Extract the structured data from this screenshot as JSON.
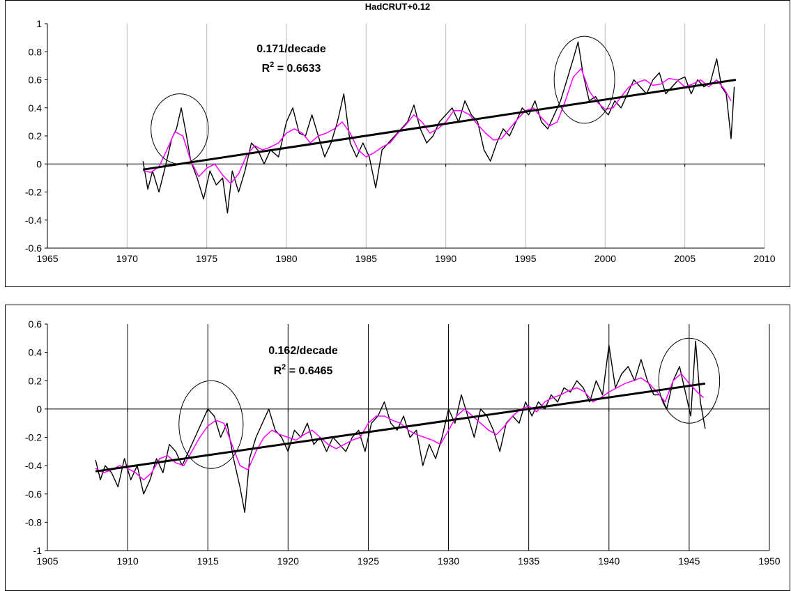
{
  "chart_data": [
    {
      "type": "line",
      "title": "HadCRUT+0.12",
      "xlim": [
        1965,
        2010
      ],
      "ylim": [
        -0.6,
        1
      ],
      "xticks": [
        1965,
        1970,
        1975,
        1980,
        1985,
        1990,
        1995,
        2000,
        2005,
        2010
      ],
      "yticks": [
        -0.6,
        -0.4,
        -0.2,
        0,
        0.2,
        0.4,
        0.6,
        0.8,
        1
      ],
      "ytick_labels": [
        "-0.6",
        "-0.4",
        "-0.2",
        "0",
        "0.2",
        "0.4",
        "0.6",
        "0.8",
        "1"
      ],
      "grid": "vertical, light gray",
      "annotation": {
        "slope": "0.171/decade",
        "r2": "0.6633"
      },
      "series": [
        {
          "role": "monthly",
          "color": "#000000",
          "x": [
            1971.0,
            1971.3,
            1971.6,
            1972.0,
            1972.4,
            1972.8,
            1973.1,
            1973.4,
            1973.7,
            1974.0,
            1974.4,
            1974.8,
            1975.2,
            1975.6,
            1976.0,
            1976.3,
            1976.6,
            1977.0,
            1977.4,
            1977.8,
            1978.2,
            1978.6,
            1979.0,
            1979.5,
            1980.0,
            1980.4,
            1980.8,
            1981.2,
            1981.6,
            1982.0,
            1982.4,
            1982.8,
            1983.2,
            1983.6,
            1984.0,
            1984.4,
            1984.8,
            1985.2,
            1985.6,
            1986.0,
            1986.4,
            1986.8,
            1987.2,
            1987.6,
            1988.0,
            1988.4,
            1988.8,
            1989.2,
            1989.6,
            1990.0,
            1990.4,
            1990.8,
            1991.2,
            1991.6,
            1992.0,
            1992.4,
            1992.8,
            1993.2,
            1993.6,
            1994.0,
            1994.4,
            1994.8,
            1995.2,
            1995.6,
            1996.0,
            1996.4,
            1996.8,
            1997.2,
            1997.6,
            1998.0,
            1998.3,
            1998.6,
            1999.0,
            1999.4,
            1999.8,
            2000.2,
            2000.6,
            2001.0,
            2001.4,
            2001.8,
            2002.2,
            2002.6,
            2003.0,
            2003.4,
            2003.8,
            2004.2,
            2004.6,
            2005.0,
            2005.4,
            2005.8,
            2006.2,
            2006.6,
            2007.0,
            2007.3,
            2007.6,
            2007.9,
            2008.1
          ],
          "y": [
            0.02,
            -0.18,
            -0.05,
            -0.2,
            -0.02,
            0.18,
            0.25,
            0.4,
            0.22,
            0.02,
            -0.1,
            -0.25,
            -0.05,
            -0.15,
            -0.1,
            -0.35,
            -0.05,
            -0.2,
            -0.05,
            0.15,
            0.1,
            0.0,
            0.1,
            0.05,
            0.3,
            0.4,
            0.22,
            0.2,
            0.35,
            0.2,
            0.05,
            0.15,
            0.3,
            0.5,
            0.15,
            0.05,
            0.15,
            0.05,
            -0.17,
            0.1,
            0.15,
            0.2,
            0.25,
            0.3,
            0.42,
            0.25,
            0.15,
            0.2,
            0.3,
            0.35,
            0.4,
            0.3,
            0.45,
            0.35,
            0.3,
            0.1,
            0.02,
            0.15,
            0.25,
            0.2,
            0.3,
            0.4,
            0.35,
            0.45,
            0.3,
            0.25,
            0.35,
            0.45,
            0.6,
            0.75,
            0.87,
            0.65,
            0.45,
            0.48,
            0.4,
            0.35,
            0.45,
            0.4,
            0.5,
            0.6,
            0.55,
            0.5,
            0.6,
            0.65,
            0.5,
            0.55,
            0.6,
            0.62,
            0.5,
            0.6,
            0.55,
            0.58,
            0.75,
            0.55,
            0.5,
            0.18,
            0.55
          ]
        },
        {
          "role": "smoothed",
          "color": "#ff00ff",
          "x": [
            1971.0,
            1971.5,
            1972.0,
            1972.5,
            1973.0,
            1973.5,
            1974.0,
            1974.5,
            1975.0,
            1975.5,
            1976.0,
            1976.5,
            1977.0,
            1977.5,
            1978.0,
            1978.5,
            1979.0,
            1979.5,
            1980.0,
            1980.5,
            1981.0,
            1981.5,
            1982.0,
            1982.5,
            1983.0,
            1983.5,
            1984.0,
            1984.5,
            1985.0,
            1985.5,
            1986.0,
            1986.5,
            1987.0,
            1987.5,
            1988.0,
            1988.5,
            1989.0,
            1989.5,
            1990.0,
            1990.5,
            1991.0,
            1991.5,
            1992.0,
            1992.5,
            1993.0,
            1993.5,
            1994.0,
            1994.5,
            1995.0,
            1995.5,
            1996.0,
            1996.5,
            1997.0,
            1997.5,
            1998.0,
            1998.5,
            1999.0,
            1999.5,
            2000.0,
            2000.5,
            2001.0,
            2001.5,
            2002.0,
            2002.5,
            2003.0,
            2003.5,
            2004.0,
            2004.5,
            2005.0,
            2005.5,
            2006.0,
            2006.5,
            2007.0,
            2007.5,
            2007.9
          ],
          "y": [
            -0.05,
            -0.06,
            -0.02,
            0.1,
            0.23,
            0.2,
            0.02,
            -0.09,
            -0.03,
            0.0,
            -0.08,
            -0.14,
            -0.07,
            0.06,
            0.13,
            0.1,
            0.12,
            0.15,
            0.22,
            0.25,
            0.22,
            0.15,
            0.2,
            0.22,
            0.25,
            0.3,
            0.22,
            0.1,
            0.05,
            0.08,
            0.12,
            0.15,
            0.22,
            0.28,
            0.35,
            0.3,
            0.22,
            0.25,
            0.3,
            0.38,
            0.38,
            0.35,
            0.28,
            0.22,
            0.17,
            0.18,
            0.25,
            0.32,
            0.38,
            0.4,
            0.33,
            0.27,
            0.3,
            0.45,
            0.62,
            0.68,
            0.52,
            0.44,
            0.39,
            0.4,
            0.48,
            0.55,
            0.58,
            0.6,
            0.56,
            0.57,
            0.61,
            0.6,
            0.55,
            0.57,
            0.6,
            0.55,
            0.6,
            0.53,
            0.45
          ]
        },
        {
          "role": "trend",
          "color": "#000000",
          "x": [
            1971,
            2008.2
          ],
          "y": [
            -0.04,
            0.6
          ]
        }
      ],
      "annotation_ellipses": [
        {
          "cx": 1973.3,
          "cy": 0.25,
          "rx": 1.8,
          "ry": 0.25
        },
        {
          "cx": 1998.7,
          "cy": 0.6,
          "rx": 1.9,
          "ry": 0.31
        }
      ]
    },
    {
      "type": "line",
      "title": "",
      "xlim": [
        1905,
        1950
      ],
      "ylim": [
        -1,
        0.6
      ],
      "xticks": [
        1905,
        1910,
        1915,
        1920,
        1925,
        1930,
        1935,
        1940,
        1945,
        1950
      ],
      "yticks": [
        -1,
        -0.8,
        -0.6,
        -0.4,
        -0.2,
        0,
        0.2,
        0.4,
        0.6
      ],
      "ytick_labels": [
        "-1",
        "-0.8",
        "-0.6",
        "-0.4",
        "-0.2",
        "0",
        "0.2",
        "0.4",
        "0.6"
      ],
      "grid": "vertical, dark",
      "annotation": {
        "slope": "0.162/decade",
        "r2": "0.6465"
      },
      "series": [
        {
          "role": "monthly",
          "color": "#000000",
          "x": [
            1908.0,
            1908.3,
            1908.6,
            1909.0,
            1909.4,
            1909.8,
            1910.2,
            1910.6,
            1911.0,
            1911.4,
            1911.8,
            1912.2,
            1912.6,
            1913.0,
            1913.4,
            1913.8,
            1914.2,
            1914.6,
            1915.0,
            1915.4,
            1915.8,
            1916.2,
            1916.6,
            1917.0,
            1917.3,
            1917.6,
            1918.0,
            1918.4,
            1918.8,
            1919.2,
            1919.6,
            1920.0,
            1920.4,
            1920.8,
            1921.2,
            1921.6,
            1922.0,
            1922.4,
            1922.8,
            1923.2,
            1923.6,
            1924.0,
            1924.4,
            1924.8,
            1925.2,
            1925.6,
            1926.0,
            1926.4,
            1926.8,
            1927.2,
            1927.6,
            1928.0,
            1928.4,
            1928.8,
            1929.2,
            1929.6,
            1930.0,
            1930.4,
            1930.8,
            1931.2,
            1931.6,
            1932.0,
            1932.4,
            1932.8,
            1933.2,
            1933.6,
            1934.0,
            1934.4,
            1934.8,
            1935.2,
            1935.6,
            1936.0,
            1936.4,
            1936.8,
            1937.2,
            1937.6,
            1938.0,
            1938.4,
            1938.8,
            1939.2,
            1939.6,
            1940.0,
            1940.4,
            1940.8,
            1941.2,
            1941.6,
            1942.0,
            1942.4,
            1942.8,
            1943.2,
            1943.6,
            1944.0,
            1944.4,
            1944.8,
            1945.1,
            1945.4,
            1945.7,
            1946.0
          ],
          "y": [
            -0.36,
            -0.5,
            -0.4,
            -0.45,
            -0.55,
            -0.35,
            -0.5,
            -0.4,
            -0.6,
            -0.5,
            -0.35,
            -0.45,
            -0.25,
            -0.3,
            -0.4,
            -0.3,
            -0.2,
            -0.1,
            0.0,
            -0.05,
            -0.2,
            -0.1,
            -0.35,
            -0.55,
            -0.73,
            -0.35,
            -0.2,
            -0.1,
            0.0,
            -0.15,
            -0.2,
            -0.3,
            -0.15,
            -0.2,
            -0.1,
            -0.25,
            -0.2,
            -0.3,
            -0.2,
            -0.25,
            -0.3,
            -0.2,
            -0.15,
            -0.3,
            -0.1,
            -0.05,
            0.05,
            -0.1,
            -0.15,
            -0.05,
            -0.2,
            -0.15,
            -0.4,
            -0.25,
            -0.35,
            -0.2,
            0.0,
            -0.1,
            0.1,
            -0.05,
            -0.2,
            0.0,
            -0.05,
            -0.15,
            -0.3,
            -0.1,
            -0.05,
            -0.1,
            0.05,
            -0.05,
            0.05,
            0.0,
            0.1,
            0.05,
            0.15,
            0.12,
            0.2,
            0.15,
            0.05,
            0.2,
            0.1,
            0.45,
            0.15,
            0.25,
            0.3,
            0.2,
            0.35,
            0.2,
            0.1,
            0.1,
            0.0,
            0.2,
            0.3,
            0.1,
            -0.05,
            0.48,
            0.05,
            -0.14
          ]
        },
        {
          "role": "smoothed",
          "color": "#ff00ff",
          "x": [
            1908.0,
            1908.5,
            1909.0,
            1909.5,
            1910.0,
            1910.5,
            1911.0,
            1911.5,
            1912.0,
            1912.5,
            1913.0,
            1913.5,
            1914.0,
            1914.5,
            1915.0,
            1915.5,
            1916.0,
            1916.5,
            1917.0,
            1917.5,
            1918.0,
            1918.5,
            1919.0,
            1919.5,
            1920.0,
            1920.5,
            1921.0,
            1921.5,
            1922.0,
            1922.5,
            1923.0,
            1923.5,
            1924.0,
            1924.5,
            1925.0,
            1925.5,
            1926.0,
            1926.5,
            1927.0,
            1927.5,
            1928.0,
            1928.5,
            1929.0,
            1929.5,
            1930.0,
            1930.5,
            1931.0,
            1931.5,
            1932.0,
            1932.5,
            1933.0,
            1933.5,
            1934.0,
            1934.5,
            1935.0,
            1935.5,
            1936.0,
            1936.5,
            1937.0,
            1937.5,
            1938.0,
            1938.5,
            1939.0,
            1939.5,
            1940.0,
            1940.5,
            1941.0,
            1941.5,
            1942.0,
            1942.5,
            1943.0,
            1943.5,
            1944.0,
            1944.5,
            1945.0,
            1945.5,
            1945.9
          ],
          "y": [
            -0.42,
            -0.45,
            -0.43,
            -0.4,
            -0.42,
            -0.45,
            -0.5,
            -0.45,
            -0.35,
            -0.33,
            -0.38,
            -0.4,
            -0.3,
            -0.2,
            -0.12,
            -0.08,
            -0.1,
            -0.25,
            -0.4,
            -0.43,
            -0.3,
            -0.2,
            -0.15,
            -0.18,
            -0.2,
            -0.22,
            -0.18,
            -0.15,
            -0.2,
            -0.25,
            -0.28,
            -0.25,
            -0.22,
            -0.2,
            -0.1,
            -0.05,
            -0.05,
            -0.08,
            -0.1,
            -0.15,
            -0.18,
            -0.2,
            -0.22,
            -0.25,
            -0.15,
            -0.05,
            0.0,
            -0.05,
            -0.1,
            -0.15,
            -0.18,
            -0.12,
            -0.05,
            0.0,
            0.02,
            -0.02,
            0.05,
            0.08,
            0.1,
            0.13,
            0.15,
            0.12,
            0.05,
            0.08,
            0.12,
            0.15,
            0.18,
            0.2,
            0.22,
            0.18,
            0.12,
            0.05,
            0.2,
            0.25,
            0.18,
            0.12,
            0.08
          ]
        },
        {
          "role": "trend",
          "color": "#000000",
          "x": [
            1908,
            1946
          ],
          "y": [
            -0.44,
            0.18
          ]
        }
      ],
      "annotation_ellipses": [
        {
          "cx": 1915.2,
          "cy": -0.11,
          "rx": 2.0,
          "ry": 0.31
        },
        {
          "cx": 1945.0,
          "cy": 0.2,
          "rx": 1.9,
          "ry": 0.3
        }
      ]
    }
  ]
}
